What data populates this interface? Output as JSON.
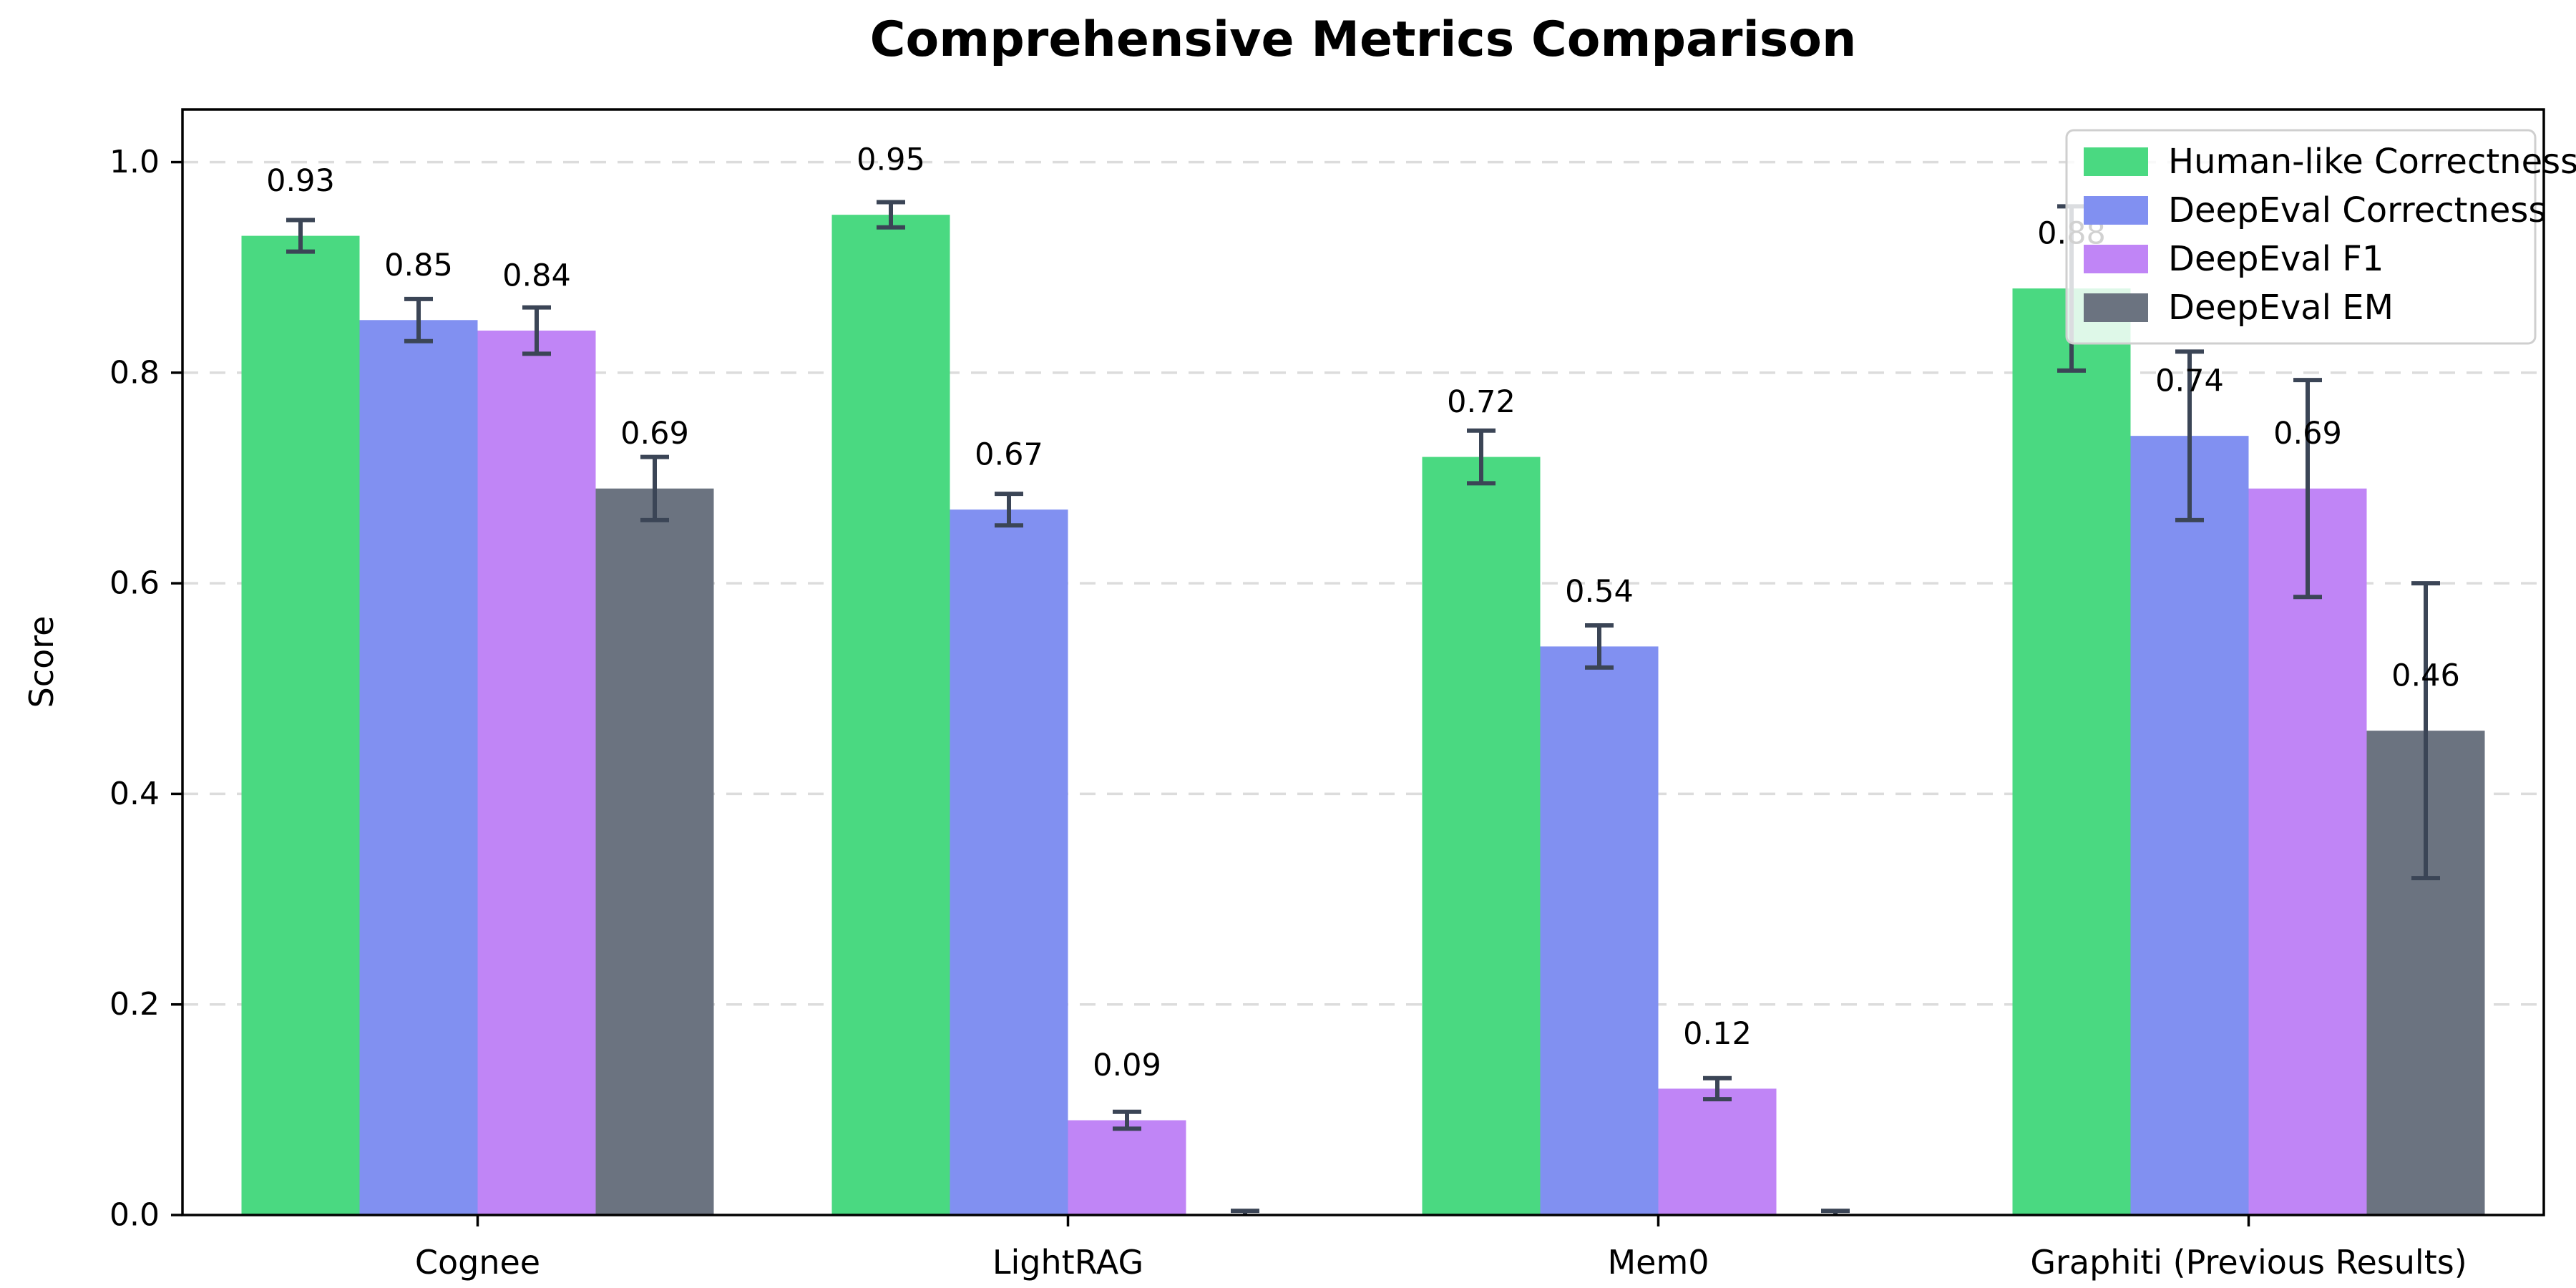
{
  "chart_data": {
    "type": "bar",
    "title": "Comprehensive Metrics Comparison",
    "xlabel": "",
    "ylabel": "Score",
    "ylim": [
      0,
      1.05
    ],
    "yticks": [
      "0.0",
      "0.2",
      "0.4",
      "0.6",
      "0.8",
      "1.0"
    ],
    "grid": "horizontal-dashed",
    "grid_color": "#dcdcdc",
    "axis_color": "#000000",
    "error_bar_color": "#3b4556",
    "legend_position": "upper-right",
    "legend_border_color": "#cfcfcf",
    "categories": [
      "Cognee",
      "LightRAG",
      "Mem0",
      "Graphiti (Previous Results)"
    ],
    "series": [
      {
        "name": "Human-like Correctness",
        "color": "#4ad981",
        "values": [
          0.93,
          0.95,
          0.72,
          0.88
        ],
        "errors": [
          0.015,
          0.012,
          0.025,
          0.078
        ],
        "labels": [
          "0.93",
          "0.95",
          "0.72",
          "0.88"
        ]
      },
      {
        "name": "DeepEval Correctness",
        "color": "#8190f1",
        "values": [
          0.85,
          0.67,
          0.54,
          0.74
        ],
        "errors": [
          0.02,
          0.015,
          0.02,
          0.08
        ],
        "labels": [
          "0.85",
          "0.67",
          "0.54",
          "0.74"
        ]
      },
      {
        "name": "DeepEval F1",
        "color": "#c085f6",
        "values": [
          0.84,
          0.09,
          0.12,
          0.69
        ],
        "errors": [
          0.022,
          0.008,
          0.01,
          0.103
        ],
        "labels": [
          "0.84",
          "0.09",
          "0.12",
          "0.69"
        ]
      },
      {
        "name": "DeepEval EM",
        "color": "#6b7380",
        "values": [
          0.69,
          0.0,
          0.0,
          0.46
        ],
        "errors": [
          0.03,
          0.004,
          0.004,
          0.14
        ],
        "labels": [
          "0.69",
          "",
          "",
          "0.46"
        ]
      }
    ]
  }
}
